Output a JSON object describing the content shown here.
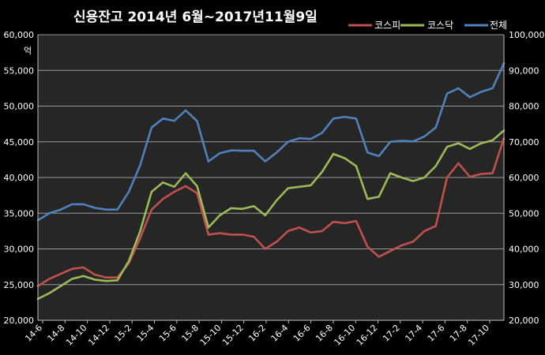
{
  "chart_data": {
    "type": "line",
    "title": "신용잔고  2014년 6월~2017년11월9일",
    "y_unit": "억",
    "ylim_left": [
      20000,
      60000
    ],
    "ylim_right": [
      20000,
      100000
    ],
    "left_ticks": [
      "20,000",
      "25,000",
      "30,000",
      "35,000",
      "40,000",
      "45,000",
      "50,000",
      "55,000",
      "60,000"
    ],
    "right_ticks": [
      "20,000",
      "30,000",
      "40,000",
      "50,000",
      "60,000",
      "70,000",
      "80,000",
      "90,000",
      "100,000"
    ],
    "x_tick_labels": [
      "14-6",
      "14-8",
      "14-10",
      "14-12",
      "15-2",
      "15-4",
      "15-6",
      "15-8",
      "15-10",
      "15-12",
      "16-2",
      "16-4",
      "16-6",
      "16-8",
      "16-10",
      "16-12",
      "17-2",
      "17-4",
      "17-6",
      "17-8",
      "17-10"
    ],
    "grid": true,
    "legend_position": "top-right",
    "x": [
      "14-6",
      "14-7",
      "14-8",
      "14-9",
      "14-10",
      "14-11",
      "14-12",
      "15-1",
      "15-2",
      "15-3",
      "15-4",
      "15-5",
      "15-6",
      "15-7",
      "15-8",
      "15-9",
      "15-10",
      "15-11",
      "15-12",
      "16-1",
      "16-2",
      "16-3",
      "16-4",
      "16-5",
      "16-6",
      "16-7",
      "16-8",
      "16-9",
      "16-10",
      "16-11",
      "16-12",
      "17-1",
      "17-2",
      "17-3",
      "17-4",
      "17-5",
      "17-6",
      "17-7",
      "17-8",
      "17-9",
      "17-10",
      "17-11"
    ],
    "series": [
      {
        "name": "코스피",
        "color": "#c0504d",
        "axis": "left",
        "values": [
          24800,
          25800,
          26500,
          27200,
          27400,
          26400,
          26000,
          26000,
          28000,
          31500,
          35500,
          37000,
          38000,
          38800,
          37800,
          32000,
          32200,
          32000,
          32000,
          31700,
          30000,
          31000,
          32500,
          33000,
          32300,
          32500,
          33800,
          33600,
          33900,
          30300,
          28900,
          29700,
          30500,
          31000,
          32500,
          33200,
          40000,
          42000,
          40100,
          40500,
          40600,
          45500
        ]
      },
      {
        "name": "코스닥",
        "color": "#9bbb59",
        "axis": "left",
        "values": [
          23000,
          23800,
          24800,
          25800,
          26200,
          25700,
          25500,
          25600,
          28300,
          32500,
          38000,
          39300,
          38700,
          40600,
          38800,
          33000,
          34700,
          35700,
          35600,
          36000,
          34700,
          36800,
          38500,
          38700,
          38900,
          40800,
          43300,
          42700,
          41600,
          37000,
          37300,
          40600,
          40000,
          39500,
          40000,
          41600,
          44300,
          44800,
          44000,
          44800,
          45200,
          46600
        ]
      },
      {
        "name": "전체",
        "color": "#4f81bd",
        "axis": "right",
        "values": [
          48000,
          50000,
          51000,
          52500,
          52500,
          51500,
          51000,
          51000,
          56000,
          63500,
          74000,
          76500,
          75900,
          78800,
          75800,
          64500,
          66800,
          67600,
          67500,
          67500,
          64500,
          67000,
          70000,
          71000,
          70800,
          72500,
          76500,
          77000,
          76500,
          67000,
          66000,
          70000,
          70300,
          70100,
          71500,
          74000,
          83500,
          85000,
          82500,
          84000,
          85000,
          92000
        ]
      }
    ]
  }
}
